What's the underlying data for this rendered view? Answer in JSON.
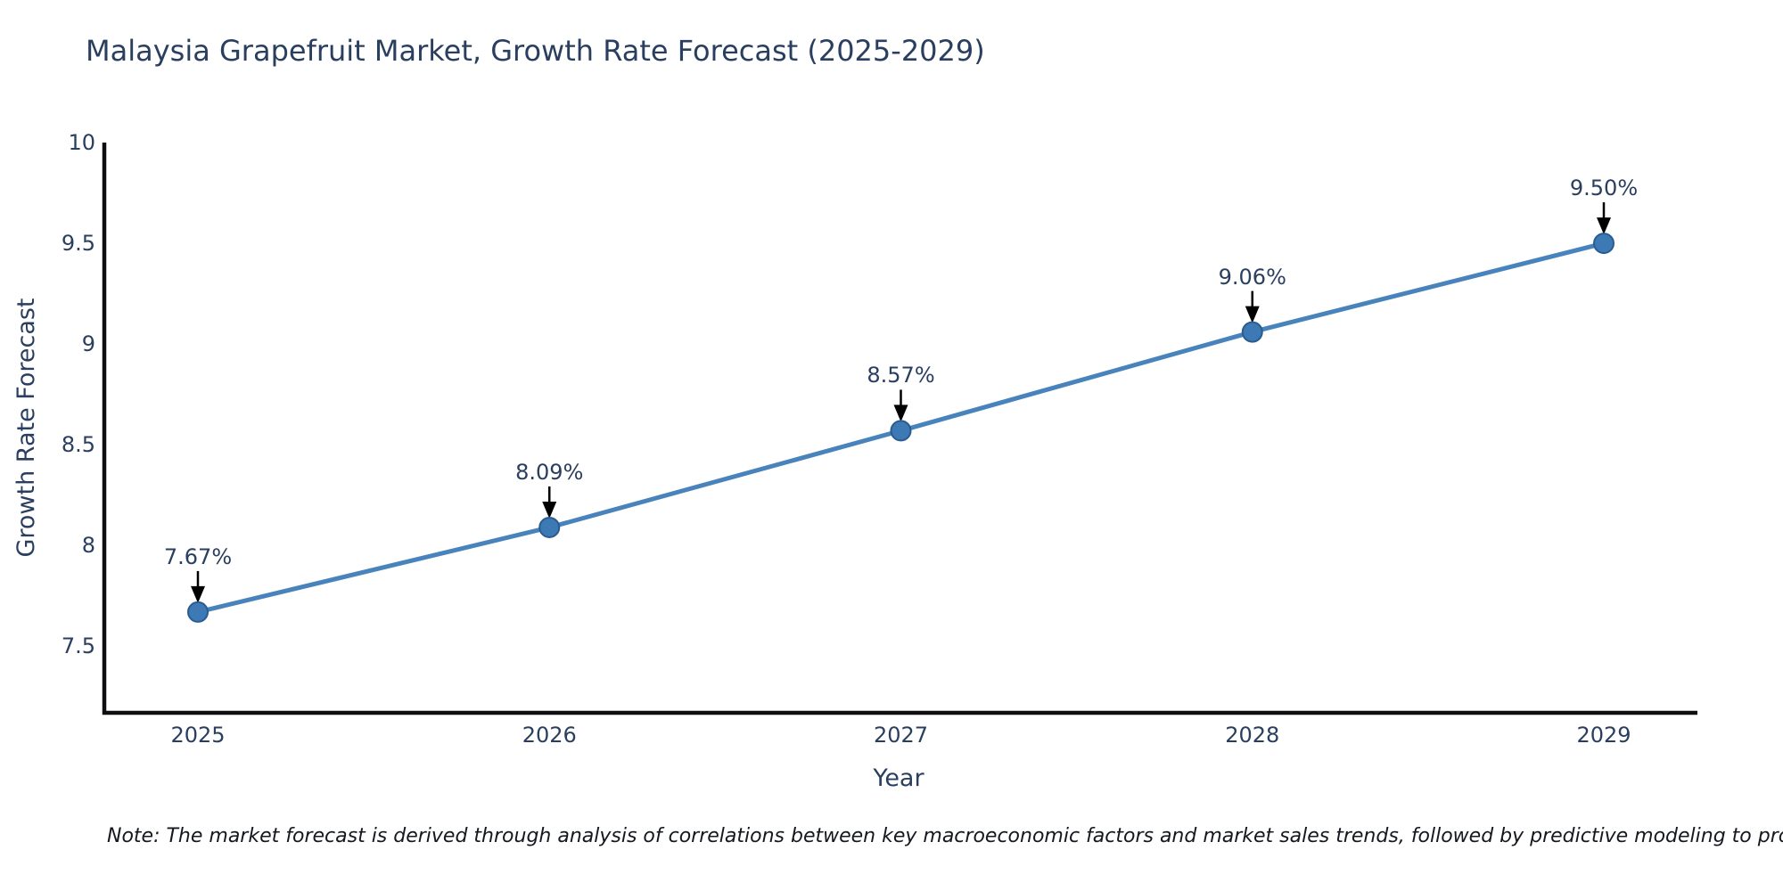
{
  "title": "Malaysia Grapefruit Market, Growth Rate Forecast (2025-2029)",
  "note": "Note: The market forecast is derived through analysis of correlations between key macroeconomic factors and market sales trends, followed by predictive modeling to project future sales",
  "chart_data": {
    "type": "line",
    "title": "Malaysia Grapefruit Market, Growth Rate Forecast (2025-2029)",
    "categories": [
      "2025",
      "2026",
      "2027",
      "2028",
      "2029"
    ],
    "values": [
      7.67,
      8.09,
      8.57,
      9.06,
      9.5
    ],
    "point_labels": [
      "7.67%",
      "8.09%",
      "8.57%",
      "9.06%",
      "9.50%"
    ],
    "xlabel": "Year",
    "ylabel": "Growth Rate Forecast",
    "yticks": [
      7.5,
      8,
      8.5,
      9,
      9.5,
      10
    ],
    "ytick_labels": [
      "7.5",
      "8",
      "8.5",
      "9",
      "9.5",
      "10"
    ],
    "ylim": [
      7.17,
      10
    ],
    "grid": false,
    "legend": "none",
    "line_color": "#4983bc",
    "marker_color": "#3c79b5",
    "marker_edge_color": "#2b5c8e",
    "axis_color": "#0e0e10",
    "text_color": "#2a3f5f",
    "annotation_arrow_color": "#000000"
  }
}
